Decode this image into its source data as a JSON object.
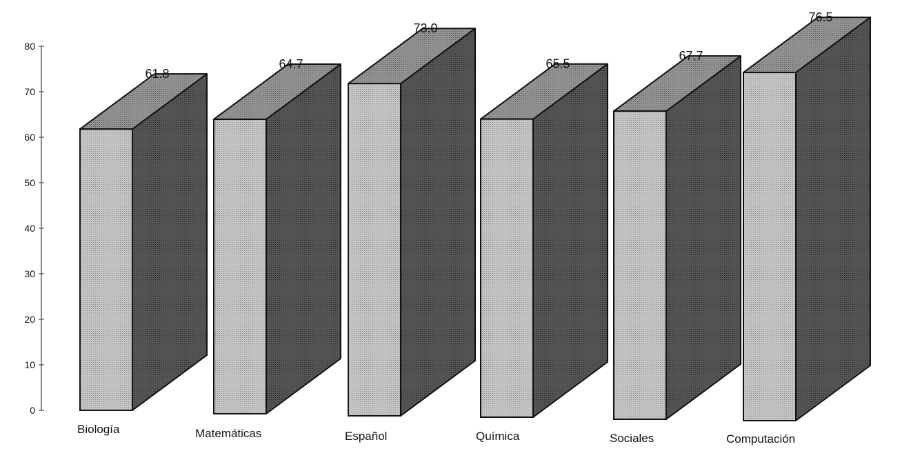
{
  "chart_data": {
    "type": "bar",
    "style": "3d-columns",
    "categories": [
      "Biología",
      "Matemáticas",
      "Español",
      "Química",
      "Sociales",
      "Computación"
    ],
    "values": [
      61.8,
      64.7,
      73.0,
      65.5,
      67.7,
      76.5
    ],
    "value_labels": [
      "61.8",
      "64.7",
      "73.0",
      "65.5",
      "67.7",
      "76.5"
    ],
    "title": "",
    "xlabel": "",
    "ylabel": "",
    "ylim": [
      0,
      80
    ],
    "yticks": [
      "0",
      "10",
      "20",
      "30",
      "40",
      "50",
      "60",
      "70",
      "80"
    ],
    "grid": false,
    "legend": "none",
    "colors": {
      "front": "#bdbdbd",
      "top": "#8c8c8c",
      "side": "#4d4d4d",
      "edge": "#111111",
      "axis": "#333333",
      "background": "#ffffff"
    }
  }
}
